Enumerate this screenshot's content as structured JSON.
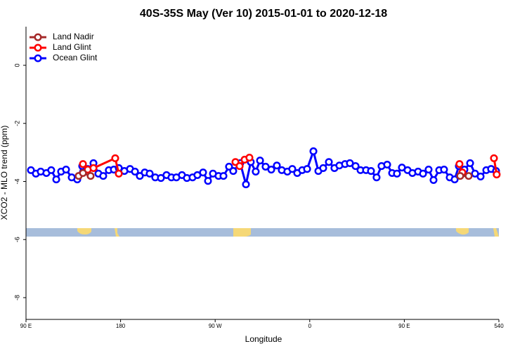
{
  "chart_data": {
    "type": "line",
    "title": "40S-35S May (Ver 10)   2015-01-01 to 2020-12-18",
    "x_label": "Longitude",
    "y_label": "XCO2 - MLO trend (ppm)",
    "xlim": [
      90,
      540
    ],
    "xticks": [
      {
        "value": 90,
        "label": "90 E"
      },
      180,
      {
        "value": 270,
        "label": "90 W"
      },
      {
        "value": 360,
        "label": "0"
      },
      {
        "value": 450,
        "label": "90 E"
      },
      540
    ],
    "ylim": [
      -8.75,
      1.33
    ],
    "yticks": [
      0,
      -2,
      -4,
      -6,
      -8
    ],
    "legend": "top-left",
    "series": [
      {
        "name": "Land Nadir",
        "color": "#a52a2a",
        "x": [
          140.1,
          144.2,
          151.5,
          null,
          503.2,
          511.2
        ],
        "values": [
          -3.81,
          -3.71,
          -3.81,
          null,
          -3.81,
          -3.81
        ]
      },
      {
        "name": "Land Glint",
        "color": "#ff0000",
        "x": [
          144.2,
          148.8,
          154.2,
          174.9,
          178.3,
          null,
          289.3,
          293.3,
          298,
          302.6,
          null,
          502.5,
          505.2,
          null,
          535.3,
          537.9
        ],
        "values": [
          -3.4,
          -3.59,
          -3.54,
          -3.2,
          -3.73,
          null,
          -3.33,
          -3.47,
          -3.25,
          -3.18,
          null,
          -3.4,
          -3.69,
          null,
          -3.2,
          -3.76
        ]
      },
      {
        "name": "Ocean Glint",
        "color": "#0000ff",
        "x": [
          94.7,
          99.4,
          104,
          109.4,
          114,
          118.8,
          123.4,
          128.1,
          133.5,
          138.8,
          143.5,
          148.8,
          154.2,
          158.9,
          163.5,
          168.8,
          173.6,
          178.3,
          183.6,
          189,
          193.7,
          198.3,
          203,
          207.7,
          213,
          218.4,
          223.7,
          228.4,
          233.1,
          238.4,
          243.1,
          248.5,
          253.1,
          258.5,
          263.2,
          267.9,
          273.2,
          277.9,
          283.2,
          287.2,
          293.9,
          299.3,
          303.9,
          308.6,
          312.7,
          318,
          323.4,
          328.7,
          333.4,
          338.7,
          343.4,
          348.1,
          352.8,
          357.5,
          363.5,
          368.2,
          372.8,
          378.2,
          383.5,
          388.2,
          393.6,
          398.2,
          403.6,
          408.3,
          413.6,
          418.3,
          423.6,
          428.3,
          433.7,
          438.4,
          443,
          447.7,
          453.1,
          457.7,
          463.1,
          467.8,
          473.1,
          477.8,
          483.2,
          487.8,
          493.2,
          497.9,
          501.9,
          507.2,
          512.6,
          517.3,
          522.6,
          528,
          532.6,
          537.3
        ],
        "values": [
          -3.61,
          -3.73,
          -3.66,
          -3.71,
          -3.61,
          -3.93,
          -3.66,
          -3.59,
          -3.86,
          -3.93,
          -3.47,
          -3.57,
          -3.37,
          -3.73,
          -3.81,
          -3.61,
          -3.59,
          -3.54,
          -3.64,
          -3.57,
          -3.66,
          -3.81,
          -3.69,
          -3.73,
          -3.86,
          -3.88,
          -3.78,
          -3.86,
          -3.86,
          -3.78,
          -3.88,
          -3.86,
          -3.78,
          -3.69,
          -3.98,
          -3.73,
          -3.81,
          -3.81,
          -3.49,
          -3.64,
          -3.37,
          -4.1,
          -3.33,
          -3.66,
          -3.28,
          -3.49,
          -3.59,
          -3.45,
          -3.61,
          -3.66,
          -3.57,
          -3.71,
          -3.61,
          -3.57,
          -2.96,
          -3.64,
          -3.54,
          -3.33,
          -3.54,
          -3.45,
          -3.4,
          -3.37,
          -3.47,
          -3.61,
          -3.61,
          -3.64,
          -3.86,
          -3.47,
          -3.42,
          -3.71,
          -3.73,
          -3.52,
          -3.61,
          -3.71,
          -3.66,
          -3.73,
          -3.59,
          -3.95,
          -3.61,
          -3.59,
          -3.86,
          -3.93,
          -3.47,
          -3.59,
          -3.37,
          -3.73,
          -3.83,
          -3.61,
          -3.57,
          -3.64
        ]
      }
    ]
  }
}
